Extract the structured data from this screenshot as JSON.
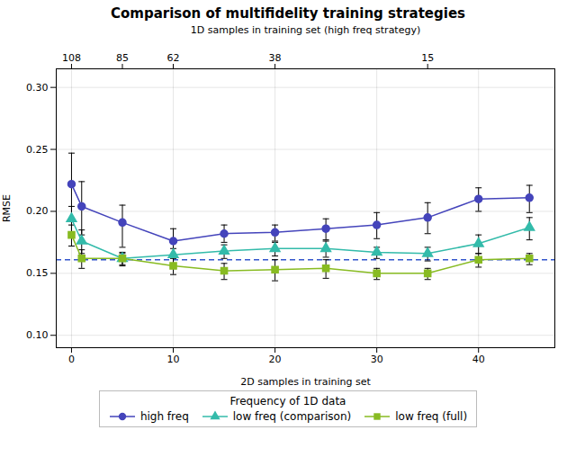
{
  "chart_data": {
    "type": "line",
    "title": "Comparison of multifidelity training strategies",
    "xlabel": "2D samples in training set",
    "ylabel": "RMSE",
    "x2label": "1D samples in training set (high freq strategy)",
    "x": [
      0,
      1,
      5,
      10,
      15,
      20,
      25,
      30,
      35,
      40,
      45
    ],
    "xlim": [
      -1.5,
      47.5
    ],
    "xticks": [
      0,
      10,
      20,
      30,
      40
    ],
    "x2ticks": [
      {
        "value": 0,
        "label": "108"
      },
      {
        "value": 5,
        "label": "85"
      },
      {
        "value": 10,
        "label": "62"
      },
      {
        "value": 20,
        "label": "38"
      },
      {
        "value": 35,
        "label": "15"
      }
    ],
    "ylim": [
      0.09,
      0.315
    ],
    "yticks": [
      {
        "value": 0.1,
        "label": "0.10"
      },
      0.15,
      {
        "value": 0.2,
        "label": "0.20"
      },
      0.25,
      {
        "value": 0.3,
        "label": "0.30"
      }
    ],
    "grid": true,
    "legend": "bottom",
    "legend_title": "Frequency of 1D data",
    "series": [
      {
        "name": "high freq",
        "color": "#4444bb",
        "marker": "circle",
        "values": [
          0.222,
          0.204,
          0.191,
          0.176,
          0.182,
          0.183,
          0.186,
          0.189,
          0.195,
          0.21,
          0.211
        ],
        "yerr_lo": [
          0.03,
          0.023,
          0.02,
          0.013,
          0.007,
          0.007,
          0.009,
          0.011,
          0.013,
          0.01,
          0.012
        ],
        "yerr_hi": [
          0.025,
          0.02,
          0.014,
          0.01,
          0.007,
          0.006,
          0.008,
          0.01,
          0.012,
          0.009,
          0.01
        ]
      },
      {
        "name": "low freq (comparison)",
        "color": "#33bbaa",
        "marker": "triangle",
        "values": [
          0.194,
          0.176,
          0.162,
          0.165,
          0.168,
          0.17,
          0.17,
          0.167,
          0.166,
          0.174,
          0.187
        ],
        "yerr_lo": [
          0.012,
          0.01,
          0.006,
          0.007,
          0.006,
          0.006,
          0.007,
          0.005,
          0.006,
          0.008,
          0.01
        ],
        "yerr_hi": [
          0.01,
          0.009,
          0.005,
          0.005,
          0.005,
          0.005,
          0.006,
          0.004,
          0.005,
          0.007,
          0.008
        ]
      },
      {
        "name": "low freq (full)",
        "color": "#88bb22",
        "marker": "square",
        "values": [
          0.181,
          0.162,
          0.162,
          0.156,
          0.152,
          0.153,
          0.154,
          0.15,
          0.15,
          0.161,
          0.162
        ],
        "yerr_lo": [
          0.009,
          0.008,
          0.005,
          0.007,
          0.007,
          0.009,
          0.008,
          0.005,
          0.005,
          0.006,
          0.005
        ],
        "yerr_hi": [
          0.008,
          0.007,
          0.004,
          0.006,
          0.006,
          0.008,
          0.007,
          0.004,
          0.004,
          0.005,
          0.004
        ]
      }
    ],
    "hlines": [
      {
        "value": 0.161,
        "color": "#3355cc",
        "line_style": "dashed"
      }
    ]
  }
}
